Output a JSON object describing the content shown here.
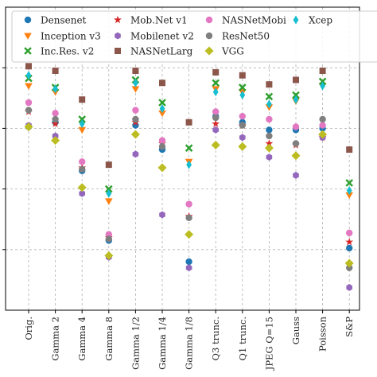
{
  "chart_data": {
    "type": "scatter",
    "title": "",
    "xlabel": "",
    "ylabel": "",
    "grid": true,
    "legend_placement": "top",
    "ylim": [
      0,
      100
    ],
    "yticks": [
      20,
      40,
      60,
      80
    ],
    "categories": [
      "Orig.",
      "Gamma 2",
      "Gamma 4",
      "Gamma 8",
      "Gamma 1/2",
      "Gamma 1/4",
      "Gamma 1/8",
      "Q3 trunc.",
      "Q1 trunc.",
      "JPEG Q=15",
      "Gauss",
      "Poisson",
      "S&P"
    ],
    "series": [
      {
        "name": "Densenet",
        "color": "#1f77b4",
        "marker": "circle",
        "values": [
          60.5,
          62,
          46,
          23,
          61,
          53,
          16,
          64,
          62,
          59.5,
          59.5,
          60,
          20.5
        ]
      },
      {
        "name": "Inception v3",
        "color": "#ff7f0e",
        "marker": "triangle-down",
        "values": [
          74,
          72,
          59.5,
          36,
          73,
          65,
          49,
          73,
          72,
          67,
          69,
          74,
          38
        ]
      },
      {
        "name": "Inc.Res. v2",
        "color": "#2ca02c",
        "marker": "x",
        "values": [
          76.5,
          73.5,
          63,
          40,
          76,
          68.5,
          53.5,
          75,
          73.5,
          70.5,
          71,
          75.5,
          42
        ]
      },
      {
        "name": "Mob.Net v1",
        "color": "#d62728",
        "marker": "star",
        "values": [
          65.5,
          61.5,
          47,
          24,
          62,
          55,
          31,
          61.5,
          61,
          55,
          54.5,
          57,
          22.5
        ]
      },
      {
        "name": "Mobilenet v2",
        "color": "#9467bd",
        "marker": "hexagon",
        "values": [
          61,
          57.5,
          38.5,
          17.5,
          51.5,
          31.5,
          14,
          59.5,
          57,
          50.5,
          44.5,
          57,
          7.5
        ]
      },
      {
        "name": "NASNetLarg",
        "color": "#8c564b",
        "marker": "square",
        "values": [
          80.5,
          79,
          69.5,
          48,
          79,
          75,
          62,
          78.5,
          77.5,
          74.5,
          76,
          79,
          53
        ]
      },
      {
        "name": "NASNetMobi",
        "color": "#e377c2",
        "marker": "circle",
        "values": [
          68.5,
          65,
          49,
          25,
          66,
          56,
          35,
          65.5,
          64,
          63,
          60.5,
          61,
          25.5
        ]
      },
      {
        "name": "ResNet50",
        "color": "#7f7f7f",
        "marker": "circle",
        "values": [
          66,
          63,
          46.5,
          23.5,
          63,
          54,
          30.5,
          63.5,
          61,
          57.5,
          55,
          63,
          14
        ]
      },
      {
        "name": "VGG",
        "color": "#bcbd22",
        "marker": "diamond",
        "values": [
          60.5,
          56,
          40.5,
          18,
          58,
          47,
          25,
          54.5,
          54,
          53.5,
          51,
          58,
          15.5
        ]
      },
      {
        "name": "Xcep",
        "color": "#17becf",
        "marker": "thin-diamond",
        "values": [
          77.5,
          73,
          61.5,
          38.5,
          75,
          66.5,
          48,
          72,
          71,
          68,
          69.5,
          74,
          39.5
        ]
      }
    ]
  }
}
